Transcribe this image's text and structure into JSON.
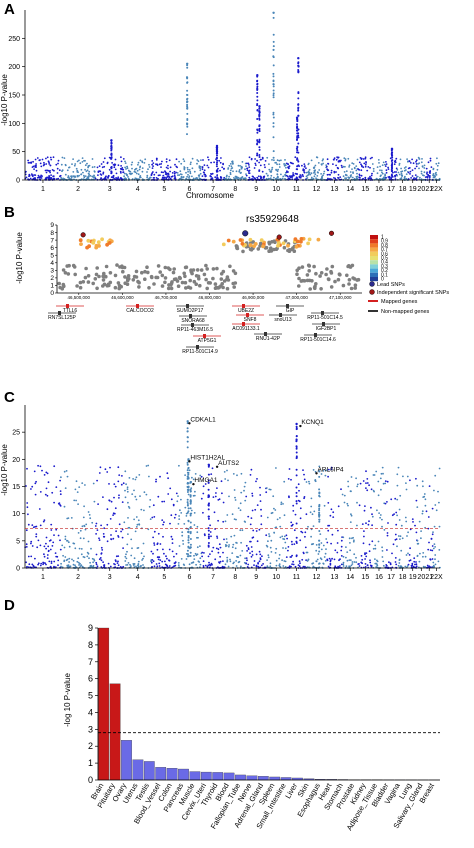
{
  "panels": {
    "a": {
      "letter": "A"
    },
    "b": {
      "letter": "B"
    },
    "c": {
      "letter": "C"
    },
    "d": {
      "letter": "D"
    }
  },
  "chart_data": [
    {
      "id": "A",
      "type": "scatter",
      "title": "",
      "xlabel": "Chromosome",
      "ylabel": "-log10 P-value",
      "ylim": [
        0,
        300
      ],
      "yticks": [
        0,
        50,
        100,
        150,
        200,
        250
      ],
      "chromosomes": [
        "1",
        "2",
        "3",
        "4",
        "5",
        "6",
        "7",
        "8",
        "9",
        "10",
        "11",
        "12",
        "13",
        "14",
        "15",
        "16",
        "17",
        "18",
        "19",
        "20",
        "21",
        "22"
      ],
      "chromosome_tick_labels": [
        "1",
        "2",
        "3",
        "4",
        "5",
        "6",
        "7",
        "8",
        "9",
        "10",
        "11",
        "12",
        "13",
        "14",
        "15",
        "16",
        "17",
        "18",
        "19",
        "20",
        "21",
        "22X"
      ],
      "chromosome_widths": [
        25,
        24,
        20,
        19,
        18,
        17,
        16,
        15,
        14,
        14,
        14,
        14,
        11,
        11,
        10,
        9,
        8,
        8,
        6,
        6,
        5,
        5
      ],
      "peaks": [
        {
          "chr": "3",
          "value": 70
        },
        {
          "chr": "6",
          "value": 205
        },
        {
          "chr": "7",
          "value": 60
        },
        {
          "chr": "9",
          "value": 185
        },
        {
          "chr": "9",
          "value": 130
        },
        {
          "chr": "10",
          "value": 295
        },
        {
          "chr": "11",
          "value": 215
        },
        {
          "chr": "11",
          "value": 110
        },
        {
          "chr": "17",
          "value": 55
        }
      ],
      "colors": {
        "odd": "#1a1acc",
        "even": "#4a86b8"
      }
    },
    {
      "id": "B",
      "type": "scatter",
      "title": "",
      "xlabel": "",
      "ylabel": "-log10 P-value",
      "ylim": [
        0,
        9
      ],
      "yticks": [
        0,
        1,
        2,
        3,
        4,
        5,
        6,
        7,
        8,
        9
      ],
      "x_tick_labels": [
        "46,500,000",
        "46,600,000",
        "46,700,000",
        "46,800,000",
        "46,900,000",
        "47,000,000",
        "47,100,000"
      ],
      "lead_snp_label": "rs35929648",
      "lead_snp": {
        "x": 46882000,
        "y": 7.9
      },
      "colorbar": {
        "labels": [
          "1",
          "0.9",
          "0.8",
          "0.7",
          "0.6",
          "0.5",
          "0.4",
          "0.3",
          "0.2",
          "0.1",
          "0"
        ],
        "colors": [
          "#c01010",
          "#e0401c",
          "#f07a2a",
          "#f5a845",
          "#f2cc5c",
          "#e8e070",
          "#b8e2a8",
          "#7fd0d8",
          "#4aa7d8",
          "#2c6fb8",
          "#1f3f98"
        ]
      },
      "legend": [
        {
          "label": "Lead SNPs",
          "color": "#2b2b8c"
        },
        {
          "label": "Independent significant SNPs",
          "color": "#a01818"
        }
      ],
      "gene_legend": [
        {
          "label": "Mapped genes",
          "color": "#d42020"
        },
        {
          "label": "Non-mapped genes",
          "color": "#333333"
        }
      ],
      "genes": [
        {
          "label": "TTLL6"
        },
        {
          "label": "RN7SL125P"
        },
        {
          "label": "CALCOCO2"
        },
        {
          "label": "SUMO2P17"
        },
        {
          "label": "SNORA68"
        },
        {
          "label": "RP11-463M16.5"
        },
        {
          "label": "ATP5G1"
        },
        {
          "label": "RP11-501C14.9"
        },
        {
          "label": "UBE2Z"
        },
        {
          "label": "SNF8"
        },
        {
          "label": "AC091133.1"
        },
        {
          "label": "GIP"
        },
        {
          "label": "snoU13"
        },
        {
          "label": "RNU1-42P"
        },
        {
          "label": "RP11-501C14.5"
        },
        {
          "label": "IGF2BP1"
        },
        {
          "label": "RP11-501C14.6"
        }
      ]
    },
    {
      "id": "C",
      "type": "scatter",
      "title": "",
      "xlabel": "",
      "ylabel": "-log10 P-value",
      "ylim": [
        0,
        30
      ],
      "yticks": [
        0,
        5,
        10,
        15,
        20,
        25
      ],
      "chromosome_tick_labels": [
        "1",
        "2",
        "3",
        "4",
        "5",
        "6",
        "7",
        "8",
        "9",
        "10",
        "11",
        "12",
        "13",
        "14",
        "15",
        "16",
        "17",
        "18",
        "19",
        "20",
        "21",
        "22X"
      ],
      "significance_line": 7.3,
      "annotations": [
        {
          "label": "CDKAL1",
          "chr": "6",
          "value": 27
        },
        {
          "label": "KCNQ1",
          "chr": "11",
          "value": 26.5
        },
        {
          "label": "HIST1H2AL",
          "chr": "6",
          "value": 20
        },
        {
          "label": "AUTS2",
          "chr": "7",
          "value": 19
        },
        {
          "label": "ARL6IP4",
          "chr": "12",
          "value": 17.8
        },
        {
          "label": "HMGA1",
          "chr": "6",
          "value": 15.8
        }
      ],
      "colors": {
        "odd": "#1a1acc",
        "even": "#4a86b8"
      }
    },
    {
      "id": "D",
      "type": "bar",
      "title": "",
      "xlabel": "",
      "ylabel": "-log 10 P-value",
      "ylim": [
        0,
        9
      ],
      "yticks": [
        0,
        1,
        2,
        3,
        4,
        5,
        6,
        7,
        8,
        9
      ],
      "threshold": 2.8,
      "categories": [
        "Brain",
        "Pituitary",
        "Ovary",
        "Uterus",
        "Testis",
        "Blood_Vessel",
        "Colon",
        "Pancreas",
        "Muscle",
        "Cervix_Uteri",
        "Thyroid",
        "Blood",
        "Fallopian_Tube",
        "Nerve",
        "Adrenal_Gland",
        "Spleen",
        "Small_Intestine",
        "Liver",
        "Skin",
        "Esophagus",
        "Heart",
        "Stomach",
        "Prostate",
        "Kidney",
        "Adipose_Tissue",
        "Bladder",
        "Vagina",
        "Lung",
        "Salivary_Gland",
        "Breast"
      ],
      "values": [
        9.0,
        5.7,
        2.35,
        1.2,
        1.1,
        0.75,
        0.7,
        0.65,
        0.5,
        0.47,
        0.45,
        0.42,
        0.3,
        0.25,
        0.22,
        0.18,
        0.15,
        0.12,
        0.08,
        0.05,
        0.04,
        0.03,
        0.02,
        0.015,
        0.01,
        0.008,
        0.006,
        0.005,
        0.004,
        0.003
      ],
      "significant_color": "#c81818",
      "nonsignificant_color": "#6a6ae6"
    }
  ]
}
